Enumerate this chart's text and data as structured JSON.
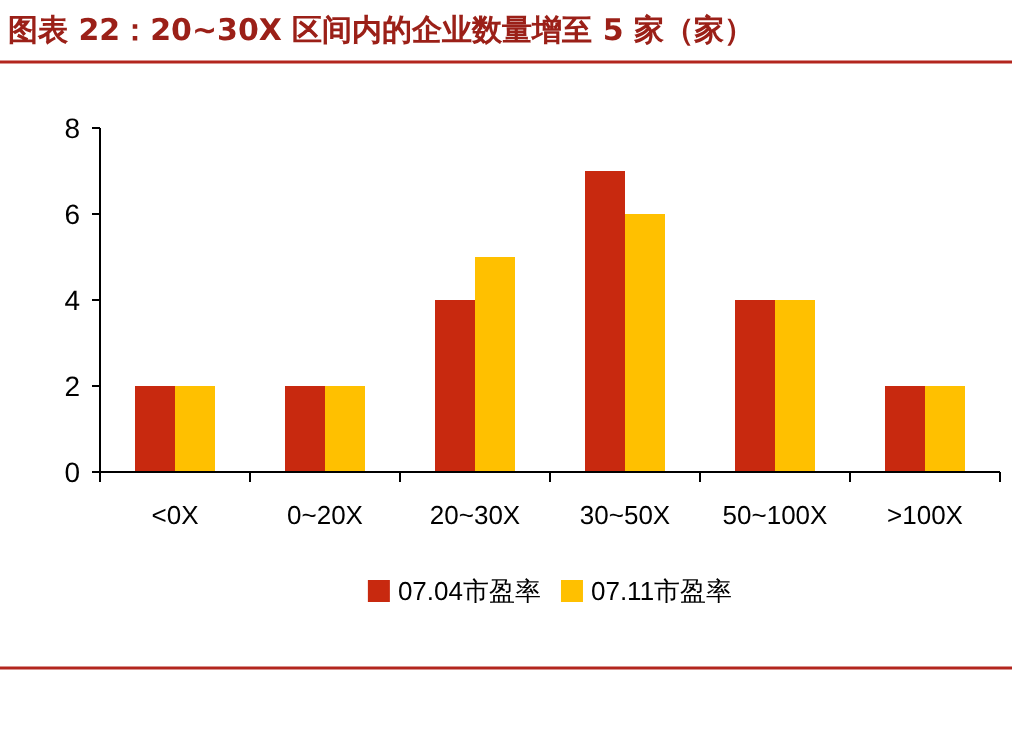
{
  "chart_data": {
    "type": "bar",
    "title": "图表 22：20~30X 区间内的企业数量增至 5 家（家）",
    "categories": [
      "<0X",
      "0~20X",
      "20~30X",
      "30~50X",
      "50~100X",
      ">100X"
    ],
    "series": [
      {
        "name": "07.04市盈率",
        "color": "#c8290f",
        "values": [
          2,
          2,
          4,
          7,
          4,
          2
        ]
      },
      {
        "name": "07.11市盈率",
        "color": "#ffc000",
        "values": [
          2,
          2,
          5,
          6,
          4,
          2
        ]
      }
    ],
    "ylim": [
      0,
      8
    ],
    "yticks": [
      0,
      2,
      4,
      6,
      8
    ],
    "grid": false,
    "legend": "bottom"
  }
}
